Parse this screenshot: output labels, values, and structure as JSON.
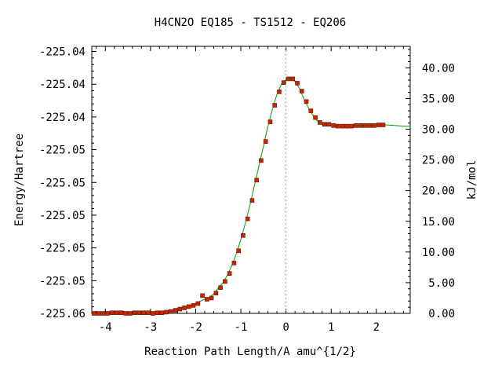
{
  "chart_data": {
    "type": "line",
    "title": "H4CN2O   EQ185 - TS1512 - EQ206",
    "xlabel": "Reaction Path Length/A amu^{1/2}",
    "ylabel_left": "Energy/Hartree",
    "ylabel_right": "kJ/mol",
    "xlim": [
      -4.3,
      2.75
    ],
    "ylim_kjmol": [
      0,
      43.5
    ],
    "x_ticks": [
      -4,
      -3,
      -2,
      -1,
      0,
      1,
      2
    ],
    "x_tick_labels": [
      "-4",
      "-3",
      "-2",
      "-1",
      "0",
      "1",
      "2"
    ],
    "left_ticks_kjmol": [
      0,
      5.33,
      10.67,
      16.0,
      21.33,
      26.67,
      32.0,
      37.33,
      42.67
    ],
    "left_tick_labels": [
      "-225.06",
      "-225.05",
      "-225.05",
      "-225.05",
      "-225.05",
      "-225.05",
      "-225.04",
      "-225.04",
      "-225.04"
    ],
    "right_ticks": [
      0,
      5,
      10,
      15,
      20,
      25,
      30,
      35,
      40
    ],
    "right_tick_labels": [
      "0.00",
      "5.00",
      "10.00",
      "15.00",
      "20.00",
      "25.00",
      "30.00",
      "35.00",
      "40.00"
    ],
    "ts_x": 0,
    "curve_color": "#00a000",
    "marker_color": "#cc2200",
    "vline_color": "#999999",
    "series": [
      {
        "x": [
          -4.3,
          -4.2,
          -4.1,
          -4.0,
          -3.9,
          -3.8,
          -3.7,
          -3.6,
          -3.5,
          -3.4,
          -3.3,
          -3.2,
          -3.1,
          -3.0,
          -2.9,
          -2.8,
          -2.7,
          -2.6,
          -2.5,
          -2.4,
          -2.3,
          -2.2,
          -2.1,
          -2.0,
          -1.9,
          -1.8,
          -1.7,
          -1.6,
          -1.5,
          -1.4,
          -1.3,
          -1.2,
          -1.1,
          -1.0,
          -0.9,
          -0.8,
          -0.7,
          -0.6,
          -0.5,
          -0.4,
          -0.3,
          -0.2,
          -0.1,
          0.0,
          0.1,
          0.2,
          0.3,
          0.4,
          0.5,
          0.6,
          0.7,
          0.8,
          0.9,
          1.0,
          1.1,
          1.2,
          1.3,
          1.4,
          1.5,
          1.6,
          1.7,
          1.8,
          1.9,
          2.0,
          2.1,
          2.2,
          2.4,
          2.6,
          2.75
        ],
        "y": [
          0.0,
          0.0,
          0.0,
          0.0,
          0.1,
          0.1,
          0.1,
          0.0,
          0.0,
          0.1,
          0.1,
          0.1,
          0.1,
          0.0,
          0.1,
          0.1,
          0.2,
          0.3,
          0.5,
          0.7,
          0.9,
          1.1,
          1.3,
          1.6,
          2.0,
          2.3,
          2.6,
          3.2,
          4.1,
          5.0,
          6.2,
          7.8,
          9.7,
          12.0,
          14.7,
          17.6,
          20.8,
          24.0,
          27.2,
          30.5,
          33.3,
          35.7,
          37.4,
          38.1,
          38.3,
          37.8,
          36.6,
          34.9,
          33.4,
          32.2,
          31.3,
          30.8,
          30.7,
          30.7,
          30.5,
          30.5,
          30.5,
          30.5,
          30.6,
          30.6,
          30.6,
          30.6,
          30.6,
          30.7,
          30.7,
          30.7,
          30.6,
          30.5,
          30.5
        ],
        "marker_x": [
          -4.25,
          -4.15,
          -4.05,
          -3.95,
          -3.85,
          -3.75,
          -3.65,
          -3.55,
          -3.45,
          -3.35,
          -3.25,
          -3.15,
          -3.05,
          -2.95,
          -2.85,
          -2.75,
          -2.65,
          -2.55,
          -2.45,
          -2.35,
          -2.25,
          -2.15,
          -2.05,
          -1.95,
          -1.85,
          -1.75,
          -1.65,
          -1.55,
          -1.45,
          -1.35,
          -1.25,
          -1.15,
          -1.05,
          -0.95,
          -0.85,
          -0.75,
          -0.65,
          -0.55,
          -0.45,
          -0.35,
          -0.25,
          -0.15,
          -0.05,
          0.05,
          0.15,
          0.25,
          0.35,
          0.45,
          0.55,
          0.65,
          0.75,
          0.85,
          0.95,
          1.05,
          1.15,
          1.25,
          1.35,
          1.45,
          1.55,
          1.65,
          1.75,
          1.85,
          1.95,
          2.05,
          2.15
        ],
        "marker_y": [
          0.0,
          0.0,
          0.0,
          0.0,
          0.1,
          0.1,
          0.1,
          0.0,
          0.0,
          0.1,
          0.1,
          0.1,
          0.1,
          0.0,
          0.1,
          0.1,
          0.2,
          0.3,
          0.5,
          0.7,
          0.9,
          1.1,
          1.3,
          1.6,
          2.9,
          2.3,
          2.5,
          3.3,
          4.2,
          5.2,
          6.5,
          8.2,
          10.2,
          12.7,
          15.4,
          18.4,
          21.7,
          24.9,
          28.0,
          31.2,
          33.9,
          36.1,
          37.6,
          38.2,
          38.2,
          37.5,
          36.2,
          34.5,
          33.0,
          31.9,
          31.1,
          30.8,
          30.8,
          30.6,
          30.5,
          30.5,
          30.5,
          30.5,
          30.6,
          30.6,
          30.6,
          30.6,
          30.6,
          30.7,
          30.7
        ]
      }
    ]
  }
}
